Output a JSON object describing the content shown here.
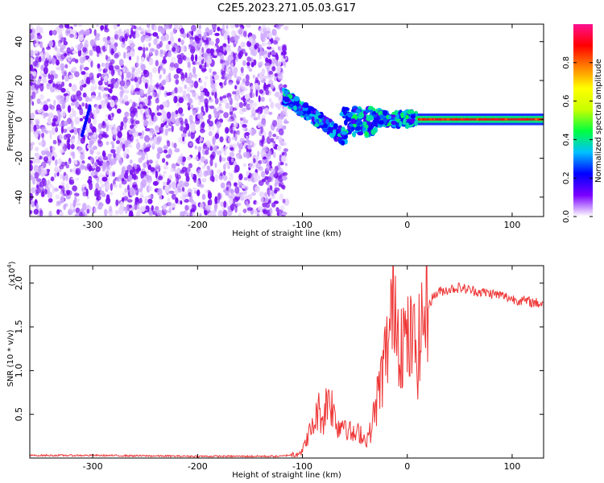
{
  "title": "C2E5.2023.271.05.03.G17",
  "chart_data": [
    {
      "type": "heatmap",
      "xlabel": "Height of straight line (km)",
      "ylabel": "Frequency (Hz)",
      "xlim": [
        -360,
        130
      ],
      "ylim": [
        -50,
        49
      ],
      "x_ticks": [
        -300,
        -200,
        -100,
        0,
        100
      ],
      "y_ticks": [
        -40,
        -20,
        0,
        20,
        40
      ],
      "colorbar": {
        "label": "Normalized spectral amplitude",
        "range": [
          0.0,
          1.0
        ],
        "ticks": [
          0.0,
          0.2,
          0.4,
          0.6,
          0.8
        ],
        "colors": [
          "#ffffff",
          "#7a00ff",
          "#0000ff",
          "#00c0ff",
          "#00ff40",
          "#c8ff00",
          "#ffff00",
          "#ff8000",
          "#ff0000",
          "#ff1090"
        ]
      },
      "regions": [
        {
          "description_x_range": [
            -360,
            -115
          ],
          "level": 0.05,
          "noise": true
        },
        {
          "description_x_range": [
            -115,
            -60
          ],
          "feature": "descending streak",
          "freq_start": 12,
          "freq_end": -10,
          "peak_level": 0.4
        },
        {
          "description_x_range": [
            -60,
            10
          ],
          "feature": "band",
          "freq_center": 0,
          "peak_level": 0.5
        },
        {
          "description_x_range": [
            10,
            130
          ],
          "feature": "narrow carrier",
          "freq_center": 0,
          "peak_level": 0.85
        }
      ]
    },
    {
      "type": "line",
      "xlabel": "Height of straight line (km)",
      "ylabel": "SNR (10 * v/v)",
      "y_scale_label": "(x10",
      "y_scale_exp": "4",
      "y_scale_close": ")",
      "xlim": [
        -360,
        130
      ],
      "ylim": [
        0.0,
        2.2
      ],
      "x_ticks": [
        -300,
        -200,
        -100,
        0,
        100
      ],
      "y_ticks": [
        "0.5",
        "1.0",
        "1.5",
        "2.0"
      ],
      "series_color": "#ee3333",
      "series": [
        {
          "x": [
            -360,
            -300,
            -200,
            -120,
            -110,
            -100,
            -95,
            -90,
            -85,
            -80,
            -75,
            -70,
            -65,
            -60,
            -55,
            -50,
            -45,
            -40,
            -35,
            -30,
            -25,
            -20,
            -15,
            -12,
            -10,
            -5,
            0,
            5,
            10,
            15,
            20,
            25,
            30,
            40,
            50,
            60,
            70,
            80,
            90,
            100,
            110,
            120,
            130
          ],
          "values": [
            0.03,
            0.03,
            0.02,
            0.02,
            0.04,
            0.08,
            0.25,
            0.35,
            0.55,
            0.45,
            0.75,
            0.5,
            0.35,
            0.45,
            0.3,
            0.25,
            0.3,
            0.2,
            0.3,
            0.6,
            0.9,
            1.2,
            1.6,
            2.1,
            1.5,
            1.4,
            1.3,
            1.35,
            1.2,
            1.6,
            1.75,
            1.85,
            1.9,
            1.93,
            1.95,
            1.92,
            1.9,
            1.88,
            1.86,
            1.82,
            1.8,
            1.78,
            1.76
          ]
        }
      ]
    }
  ]
}
